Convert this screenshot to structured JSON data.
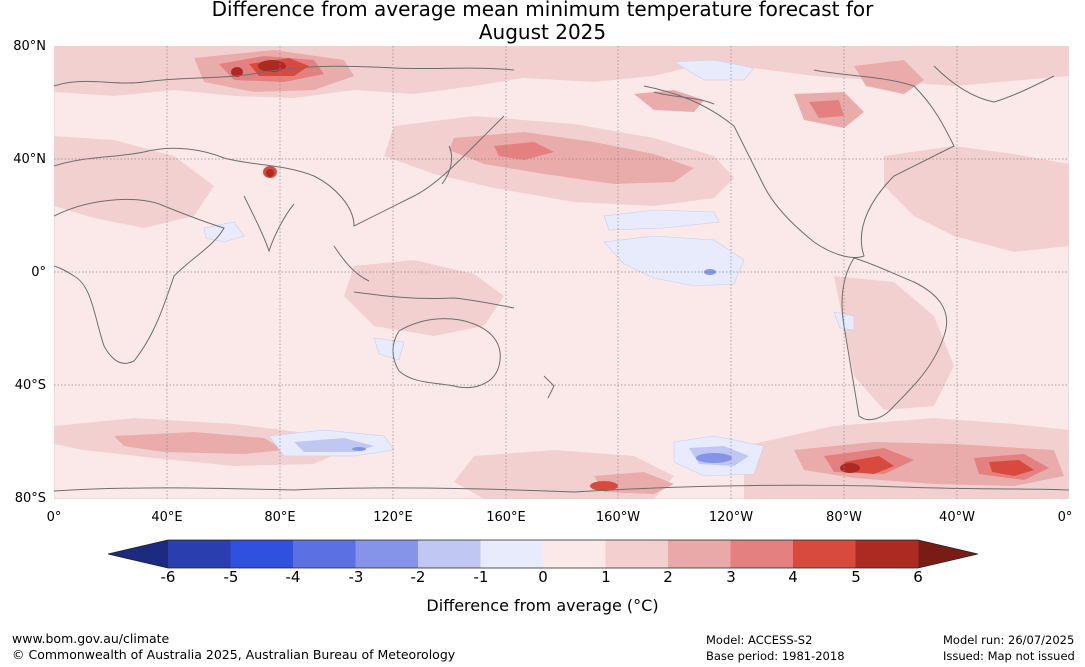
{
  "title": {
    "line1": "Difference from average mean minimum temperature forecast for",
    "line2": "August 2025"
  },
  "map": {
    "lat_labels": [
      "80°N",
      "40°N",
      "0°",
      "40°S",
      "80°S"
    ],
    "lon_labels": [
      "0°",
      "40°E",
      "80°E",
      "120°E",
      "160°E",
      "160°W",
      "120°W",
      "80°W",
      "40°W",
      "0°"
    ],
    "ocean_base_color": "#fbe9e9",
    "coastline_color": "#6e6e6e"
  },
  "colorbar": {
    "tick_labels": [
      "-6",
      "-5",
      "-4",
      "-3",
      "-2",
      "-1",
      "0",
      "1",
      "2",
      "3",
      "4",
      "5",
      "6"
    ],
    "colors": [
      "#1c2a80",
      "#2a3eb0",
      "#3050e0",
      "#5a70e3",
      "#8593e9",
      "#c0c7f2",
      "#e8ebfb",
      "#fbe9e9",
      "#f3cfcf",
      "#eaa9a9",
      "#e48080",
      "#d94a3e",
      "#ac2a22",
      "#7a1c16"
    ],
    "title": "Difference from average (°C)"
  },
  "footer": {
    "url": "www.bom.gov.au/climate",
    "copyright": "© Commonwealth of Australia 2025, Australian Bureau of Meteorology",
    "model": "Model: ACCESS-S2",
    "base_period": "Base period: 1981-2018",
    "model_run": "Model run: 26/07/2025",
    "issued": "Issued: Map not issued"
  }
}
